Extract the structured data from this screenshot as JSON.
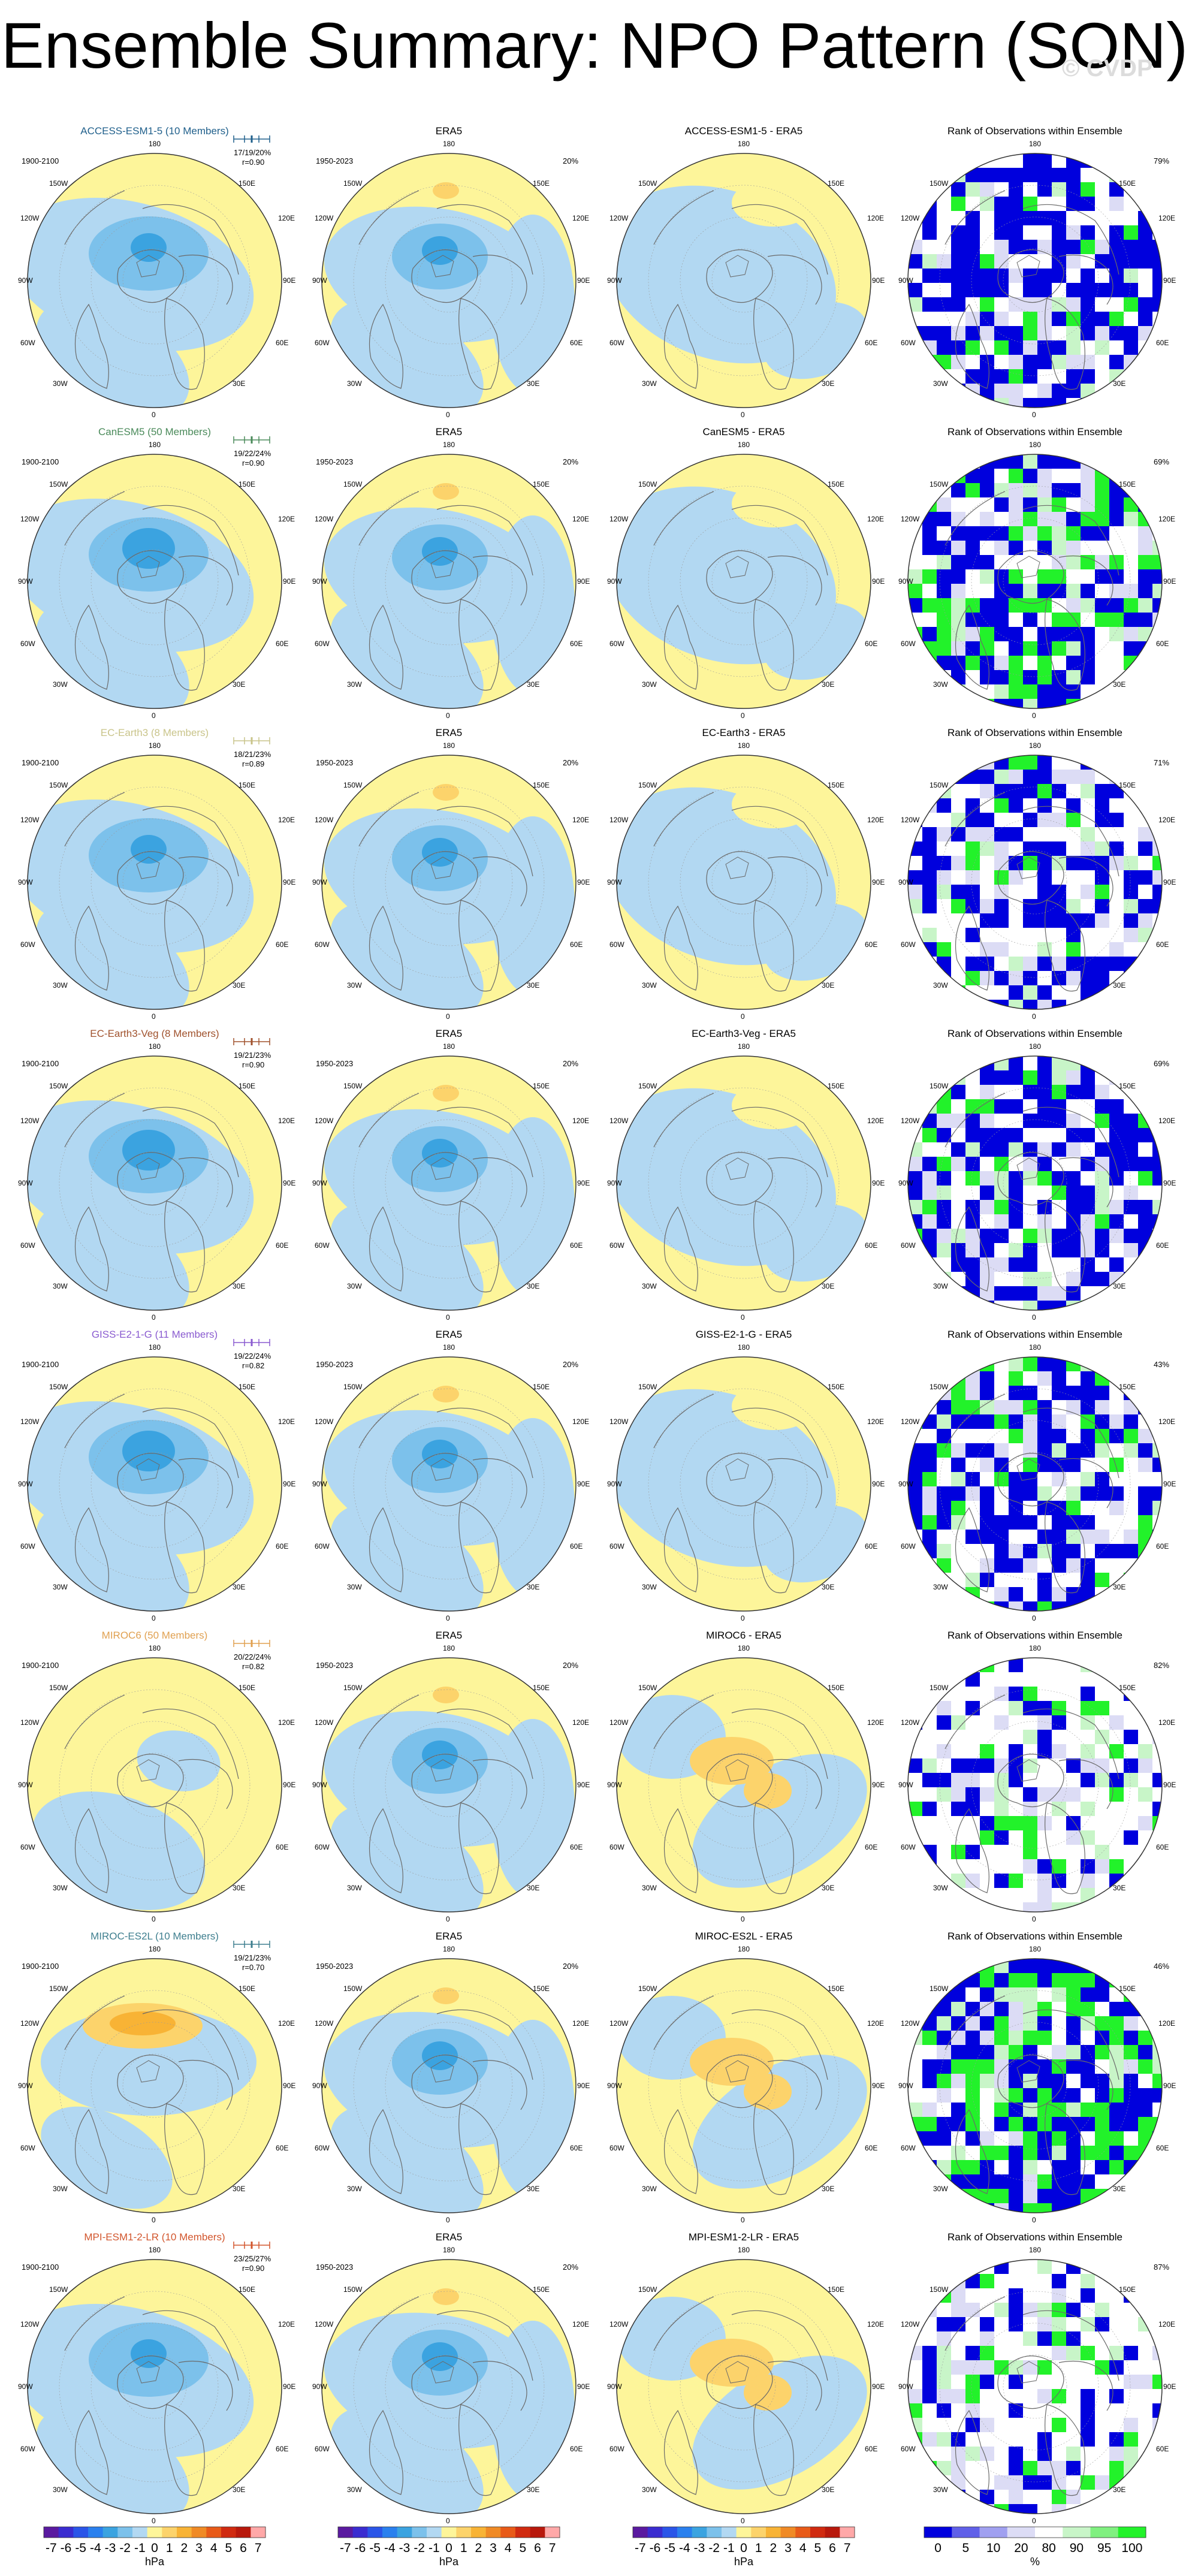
{
  "title": "Ensemble Summary: NPO Pattern (SON)",
  "watermark": "© CVDP",
  "colors": {
    "yellow": "#fdf59a",
    "lightblue": "#b2d8f2",
    "midblue": "#7cc1eb",
    "blue": "#3ba3e0",
    "lightorange": "#fcd36b",
    "orange": "#f8b335",
    "rankblue": "#0000dd",
    "rankpale": "#dcdcf5",
    "rankgreen": "#22f22a",
    "rankpalegreen": "#c8f5c8",
    "land": "#6a6a6a"
  },
  "labels": {
    "obs": "ERA5",
    "rank_title": "Rank of Observations within Ensemble",
    "model_period": "1900-2100",
    "obs_period": "1950-2023",
    "obs_pct": "20%",
    "lon_180": "180",
    "lon_0": "0",
    "lon_150w": "150W",
    "lon_150e": "150E",
    "lon_120w": "120W",
    "lon_120e": "120E",
    "lon_90w": "90W",
    "lon_90e": "90E",
    "lon_60w": "60W",
    "lon_60e": "60E",
    "lon_30w": "30W",
    "lon_30e": "30E"
  },
  "rows": [
    {
      "model": "ACCESS-ESM1-5 (10 Members)",
      "model_color": "#1f5f8b",
      "diff": "ACCESS-ESM1-5 - ERA5",
      "pct": "17/19/20%",
      "r": "r=0.90",
      "rank_pct": "79%",
      "mean": "weak",
      "diffkind": "blue",
      "rank": "blueheavy"
    },
    {
      "model": "CanESM5 (50 Members)",
      "model_color": "#4a8a5a",
      "diff": "CanESM5 - ERA5",
      "pct": "19/22/24%",
      "r": "r=0.90",
      "rank_pct": "69%",
      "mean": "strong",
      "diffkind": "blue",
      "rank": "mixed"
    },
    {
      "model": "EC-Earth3 (8 Members)",
      "model_color": "#c9c48a",
      "diff": "EC-Earth3 - ERA5",
      "pct": "18/21/23%",
      "r": "r=0.89",
      "rank_pct": "71%",
      "mean": "weak",
      "diffkind": "blue",
      "rank": "blueheavy"
    },
    {
      "model": "EC-Earth3-Veg (8 Members)",
      "model_color": "#a0522d",
      "diff": "EC-Earth3-Veg - ERA5",
      "pct": "19/21/23%",
      "r": "r=0.90",
      "rank_pct": "69%",
      "mean": "strong",
      "diffkind": "blue",
      "rank": "blueheavy"
    },
    {
      "model": "GISS-E2-1-G (11 Members)",
      "model_color": "#8a5bd0",
      "diff": "GISS-E2-1-G - ERA5",
      "pct": "19/22/24%",
      "r": "r=0.82",
      "rank_pct": "43%",
      "mean": "strong",
      "diffkind": "blue",
      "rank": "mixed"
    },
    {
      "model": "MIROC6 (50 Members)",
      "model_color": "#e0a050",
      "diff": "MIROC6 - ERA5",
      "pct": "20/22/24%",
      "r": "r=0.82",
      "rank_pct": "82%",
      "mean": "yellow",
      "diffkind": "orange",
      "rank": "sparse"
    },
    {
      "model": "MIROC-ES2L (10 Members)",
      "model_color": "#3f7f8f",
      "diff": "MIROC-ES2L - ERA5",
      "pct": "19/21/23%",
      "r": "r=0.70",
      "rank_pct": "46%",
      "mean": "orange",
      "diffkind": "orange",
      "rank": "greenheavy"
    },
    {
      "model": "MPI-ESM1-2-LR (10 Members)",
      "model_color": "#d2562d",
      "diff": "MPI-ESM1-2-LR - ERA5",
      "pct": "23/25/27%",
      "r": "r=0.90",
      "rank_pct": "87%",
      "mean": "weak",
      "diffkind": "orange",
      "rank": "sparse"
    }
  ],
  "colorbar": {
    "ticks": [
      "-7",
      "-6",
      "-5",
      "-4",
      "-3",
      "-2",
      "-1",
      "0",
      "1",
      "2",
      "3",
      "4",
      "5",
      "6",
      "7"
    ],
    "unit": "hPa",
    "colors": [
      "#5a1aa0",
      "#3a2cd0",
      "#2a55e8",
      "#2a80ee",
      "#3ba3e0",
      "#7cc1eb",
      "#b2d8f2",
      "#fdf59a",
      "#fcd36b",
      "#f8b335",
      "#f08a25",
      "#e85a18",
      "#d02a10",
      "#b8180c",
      "#ffa8a8"
    ]
  },
  "rank_colorbar": {
    "ticks": [
      "0",
      "5",
      "10",
      "20",
      "80",
      "90",
      "95",
      "100"
    ],
    "unit": "%",
    "colors": [
      "#0000dd",
      "#6060e8",
      "#a0a0f0",
      "#dcdcf5",
      "#ffffff",
      "#c8f5c8",
      "#80f080",
      "#22f22a"
    ]
  }
}
